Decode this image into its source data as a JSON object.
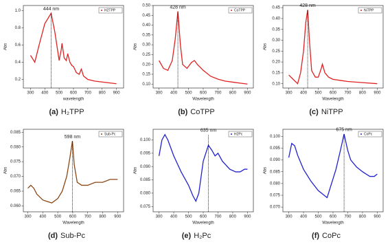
{
  "chart_data": [
    {
      "type": "line",
      "panel": "(a)",
      "caption": "H₂TPP",
      "x_label": "wavelength",
      "y_label": "Abs",
      "annotation": "444 nm",
      "peak_x": 444,
      "xlim": [
        250,
        950
      ],
      "xticks": [
        300,
        400,
        500,
        600,
        700,
        800,
        900
      ],
      "ylim": [
        0.1,
        1.06
      ],
      "yticks": [
        0.2,
        0.4,
        0.6,
        0.8,
        {
          "value": 1,
          "label": "1.0"
        }
      ],
      "x": [
        300,
        330,
        360,
        400,
        444,
        470,
        500,
        515,
        520,
        535,
        550,
        560,
        575,
        590,
        600,
        620,
        640,
        655,
        670,
        700,
        750,
        800,
        850,
        900
      ],
      "series": [
        {
          "name": "H2TPP",
          "color": "#e02020",
          "values": [
            0.48,
            0.4,
            0.6,
            0.85,
            0.97,
            0.75,
            0.42,
            0.55,
            0.62,
            0.45,
            0.42,
            0.5,
            0.4,
            0.36,
            0.35,
            0.28,
            0.26,
            0.32,
            0.24,
            0.2,
            0.18,
            0.17,
            0.16,
            0.15
          ]
        }
      ]
    },
    {
      "type": "line",
      "panel": "(b)",
      "caption": "CoTPP",
      "x_label": "Wavelength",
      "y_label": "Abs",
      "annotation": "428 nm",
      "peak_x": 428,
      "xlim": [
        260,
        940
      ],
      "xticks": [
        300,
        400,
        500,
        600,
        700,
        800,
        900
      ],
      "ylim": [
        0.08,
        0.5
      ],
      "yticks": [
        {
          "value": 0.1,
          "label": "0.10"
        },
        0.15,
        {
          "value": 0.2,
          "label": "0.20"
        },
        0.25,
        {
          "value": 0.3,
          "label": "0.30"
        },
        0.35,
        {
          "value": 0.4,
          "label": "0.40"
        },
        0.45,
        {
          "value": 0.5,
          "label": "0.50"
        }
      ],
      "x": [
        300,
        330,
        360,
        390,
        410,
        428,
        445,
        460,
        490,
        520,
        540,
        560,
        600,
        650,
        700,
        750,
        800,
        850,
        900
      ],
      "series": [
        {
          "name": "CoTPP",
          "color": "#e02020",
          "values": [
            0.22,
            0.18,
            0.17,
            0.22,
            0.33,
            0.47,
            0.3,
            0.2,
            0.18,
            0.21,
            0.22,
            0.2,
            0.17,
            0.14,
            0.125,
            0.115,
            0.11,
            0.105,
            0.1
          ]
        }
      ]
    },
    {
      "type": "line",
      "panel": "(c)",
      "caption": "NiTPP",
      "x_label": "Wavelength",
      "y_label": "Abs",
      "annotation": "428 nm",
      "peak_x": 428,
      "xlim": [
        260,
        940
      ],
      "xticks": [
        300,
        400,
        500,
        600,
        700,
        800,
        900
      ],
      "ylim": [
        0.08,
        0.46
      ],
      "yticks": [
        {
          "value": 0.1,
          "label": "0.10"
        },
        0.15,
        {
          "value": 0.2,
          "label": "0.20"
        },
        0.25,
        {
          "value": 0.3,
          "label": "0.30"
        },
        0.35,
        {
          "value": 0.4,
          "label": "0.40"
        },
        0.45
      ],
      "x": [
        300,
        330,
        360,
        380,
        400,
        415,
        428,
        440,
        455,
        480,
        500,
        520,
        528,
        545,
        570,
        600,
        650,
        700,
        800,
        900
      ],
      "series": [
        {
          "name": "NiTPP",
          "color": "#e02020",
          "values": [
            0.14,
            0.12,
            0.1,
            0.15,
            0.25,
            0.38,
            0.44,
            0.3,
            0.16,
            0.13,
            0.13,
            0.17,
            0.19,
            0.15,
            0.13,
            0.12,
            0.115,
            0.11,
            0.105,
            0.1
          ]
        }
      ]
    },
    {
      "type": "line",
      "panel": "(d)",
      "caption": "Sub-Pc",
      "x_label": "Wavelength",
      "y_label": "Abs",
      "annotation": "598 nm",
      "peak_x": 598,
      "xlim": [
        270,
        940
      ],
      "xticks": [
        300,
        400,
        500,
        600,
        700,
        800,
        900
      ],
      "ylim": [
        0.058,
        0.086
      ],
      "yticks": [
        {
          "value": 0.06,
          "label": "0.060"
        },
        0.065,
        {
          "value": 0.07,
          "label": "0.070"
        },
        0.075,
        {
          "value": 0.08,
          "label": "0.080"
        },
        0.085
      ],
      "x": [
        300,
        320,
        340,
        360,
        400,
        430,
        460,
        500,
        530,
        560,
        580,
        598,
        610,
        630,
        660,
        700,
        750,
        800,
        850,
        900
      ],
      "series": [
        {
          "name": "Sub-Pc",
          "color": "#8b4513",
          "values": [
            0.066,
            0.067,
            0.066,
            0.064,
            0.062,
            0.0615,
            0.061,
            0.0625,
            0.065,
            0.07,
            0.076,
            0.082,
            0.074,
            0.068,
            0.067,
            0.067,
            0.068,
            0.068,
            0.069,
            0.069
          ]
        }
      ]
    },
    {
      "type": "line",
      "panel": "(e)",
      "caption": "H₂Pc",
      "x_label": "Wavelength",
      "y_label": "Abs",
      "annotation": "635 nm",
      "peak_x": 635,
      "xlim": [
        260,
        940
      ],
      "xticks": [
        300,
        400,
        500,
        600,
        700,
        800,
        900
      ],
      "ylim": [
        0.073,
        0.104
      ],
      "yticks": [
        0.075,
        {
          "value": 0.08,
          "label": "0.080"
        },
        0.085,
        {
          "value": 0.09,
          "label": "0.090"
        },
        0.095,
        {
          "value": 0.1,
          "label": "0.100"
        }
      ],
      "x": [
        300,
        320,
        340,
        360,
        400,
        450,
        500,
        530,
        550,
        570,
        600,
        635,
        660,
        680,
        700,
        730,
        780,
        820,
        850,
        880,
        900
      ],
      "series": [
        {
          "name": "H2Pc",
          "color": "#2020d0",
          "values": [
            0.094,
            0.1,
            0.102,
            0.1,
            0.094,
            0.088,
            0.083,
            0.079,
            0.077,
            0.08,
            0.092,
            0.098,
            0.096,
            0.094,
            0.095,
            0.092,
            0.089,
            0.088,
            0.088,
            0.089,
            0.089
          ]
        }
      ]
    },
    {
      "type": "line",
      "panel": "(f)",
      "caption": "CoPc",
      "x_label": "Wavelength",
      "y_label": "Abs",
      "annotation": "675 nm",
      "peak_x": 675,
      "xlim": [
        260,
        940
      ],
      "xticks": [
        300,
        400,
        500,
        600,
        700,
        800,
        900
      ],
      "ylim": [
        0.068,
        0.103
      ],
      "yticks": [
        {
          "value": 0.07,
          "label": "0.070"
        },
        0.075,
        {
          "value": 0.08,
          "label": "0.080"
        },
        0.085,
        {
          "value": 0.09,
          "label": "0.090"
        },
        0.095,
        {
          "value": 0.1,
          "label": "0.100"
        }
      ],
      "x": [
        300,
        320,
        340,
        360,
        400,
        450,
        500,
        540,
        560,
        580,
        620,
        650,
        675,
        700,
        720,
        760,
        800,
        850,
        880,
        900
      ],
      "series": [
        {
          "name": "CoPc",
          "color": "#2020d0",
          "values": [
            0.091,
            0.097,
            0.096,
            0.092,
            0.086,
            0.081,
            0.077,
            0.075,
            0.074,
            0.078,
            0.086,
            0.094,
            0.101,
            0.094,
            0.09,
            0.087,
            0.085,
            0.083,
            0.083,
            0.084
          ]
        }
      ]
    }
  ]
}
